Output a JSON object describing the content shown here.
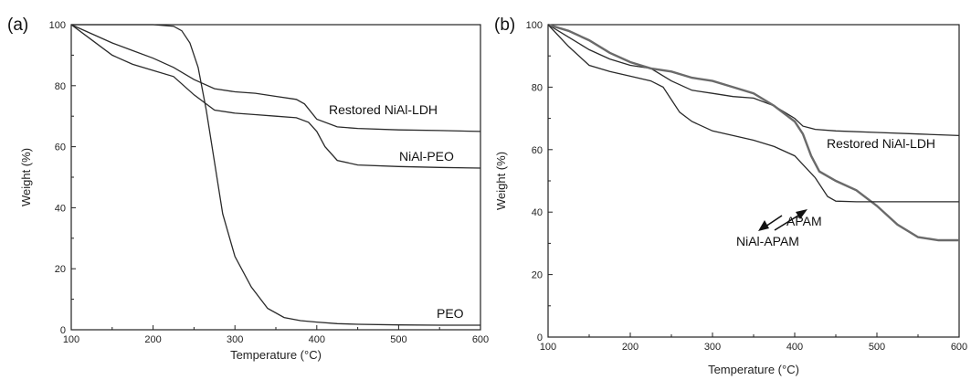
{
  "chart_data": [
    {
      "panel": "(a)",
      "type": "line",
      "xlabel": "Temperature (°C)",
      "ylabel": "Weight (%)",
      "xlim": [
        100,
        600
      ],
      "ylim": [
        0,
        100
      ],
      "xticks": [
        100,
        200,
        300,
        400,
        500,
        600
      ],
      "yticks": [
        0,
        20,
        40,
        60,
        80,
        100
      ],
      "series": [
        {
          "name": "Restored NiAl-LDH",
          "x": [
            100,
            125,
            150,
            175,
            200,
            225,
            250,
            275,
            300,
            325,
            350,
            375,
            385,
            400,
            425,
            450,
            500,
            550,
            600
          ],
          "y": [
            100,
            97,
            94,
            91.5,
            89,
            86,
            82,
            79,
            78,
            77.5,
            76.5,
            75.5,
            74,
            69,
            66.5,
            66,
            65.5,
            65.3,
            65
          ]
        },
        {
          "name": "NiAl-PEO",
          "x": [
            100,
            125,
            150,
            175,
            200,
            225,
            250,
            275,
            300,
            325,
            350,
            375,
            390,
            400,
            410,
            425,
            450,
            500,
            550,
            600
          ],
          "y": [
            100,
            95,
            90,
            87,
            85,
            83,
            77,
            72,
            71,
            70.5,
            70,
            69.5,
            68,
            65,
            60,
            55.5,
            54,
            53.5,
            53.2,
            53
          ]
        },
        {
          "name": "PEO",
          "x": [
            100,
            150,
            200,
            225,
            235,
            245,
            255,
            265,
            275,
            285,
            300,
            320,
            340,
            360,
            380,
            400,
            425,
            450,
            500,
            550,
            600
          ],
          "y": [
            100,
            100,
            100,
            99.5,
            98,
            94,
            86,
            72,
            55,
            38,
            24,
            14,
            7,
            4,
            3,
            2.5,
            2,
            1.8,
            1.6,
            1.5,
            1.5
          ]
        }
      ]
    },
    {
      "panel": "(b)",
      "type": "line",
      "xlabel": "Temperature (°C)",
      "ylabel": "Weight (%)",
      "xlim": [
        100,
        600
      ],
      "ylim": [
        0,
        100
      ],
      "xticks": [
        100,
        200,
        300,
        400,
        500,
        600
      ],
      "yticks": [
        0,
        20,
        40,
        60,
        80,
        100
      ],
      "series": [
        {
          "name": "Restored NiAl-LDH",
          "x": [
            100,
            125,
            150,
            175,
            200,
            225,
            250,
            275,
            300,
            325,
            350,
            375,
            400,
            410,
            425,
            450,
            500,
            550,
            600
          ],
          "y": [
            100,
            96,
            92,
            89,
            87,
            86,
            82,
            79,
            78,
            77,
            76.5,
            74,
            70,
            67.5,
            66.5,
            66,
            65.5,
            65,
            64.5
          ]
        },
        {
          "name": "APAM",
          "x": [
            100,
            125,
            150,
            175,
            200,
            225,
            250,
            275,
            300,
            325,
            350,
            375,
            400,
            410,
            420,
            430,
            450,
            475,
            500,
            525,
            550,
            575,
            600
          ],
          "y": [
            100,
            98,
            95,
            91,
            88,
            86,
            85,
            83,
            82,
            80,
            78,
            74,
            69,
            65,
            58,
            53,
            50,
            47,
            42,
            36,
            32,
            31,
            31
          ]
        },
        {
          "name": "NiAl-APAM",
          "x": [
            100,
            125,
            150,
            175,
            200,
            225,
            240,
            250,
            260,
            275,
            300,
            325,
            350,
            375,
            400,
            425,
            440,
            450,
            475,
            500,
            550,
            600
          ],
          "y": [
            100,
            93,
            87,
            85,
            83.5,
            82,
            80,
            76,
            72,
            69,
            66,
            64.5,
            63,
            61,
            58,
            51,
            45,
            43.5,
            43.3,
            43.3,
            43.3,
            43.3
          ]
        }
      ],
      "annotations": [
        {
          "text": "APAM",
          "arrow_to": [
            458,
            50
          ]
        },
        {
          "text": "NiAl-APAM",
          "arrow_to": [
            412,
            57
          ]
        }
      ]
    }
  ]
}
